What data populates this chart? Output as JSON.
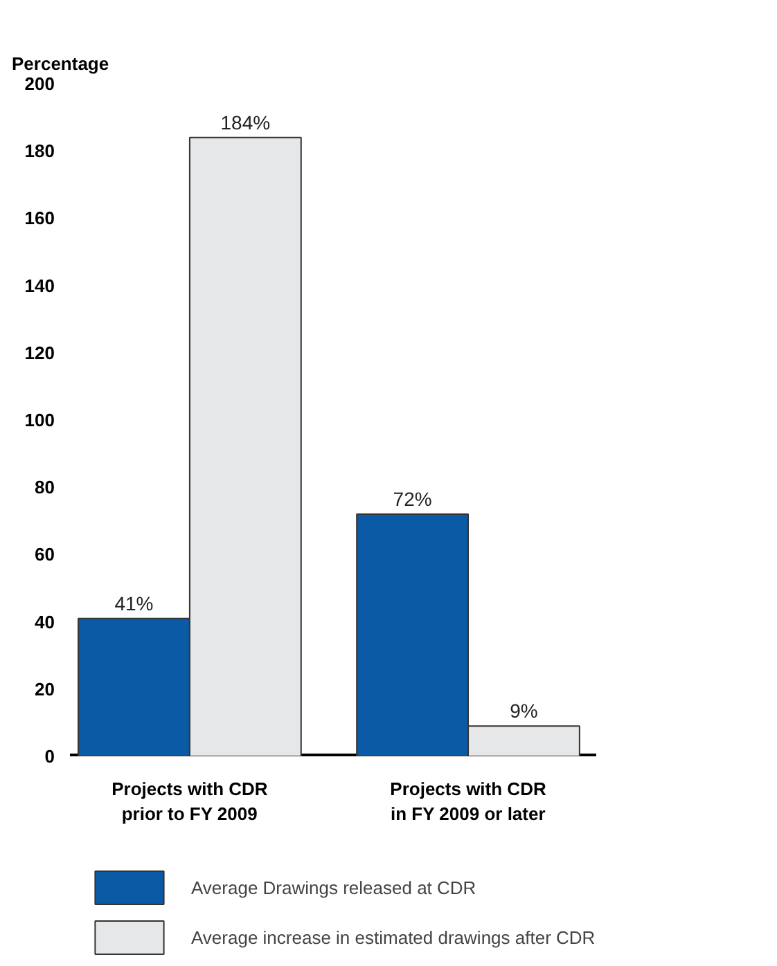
{
  "chart_data": {
    "type": "bar",
    "ylabel": "Percentage",
    "categories": [
      "Projects with CDR\nprior to FY 2009",
      "Projects with CDR\nin FY 2009 or later"
    ],
    "series": [
      {
        "name": "Average Drawings released at CDR",
        "color": "#0b5aa6",
        "values": [
          41,
          72
        ],
        "value_labels": [
          "41%",
          "72%"
        ]
      },
      {
        "name": "Average increase in estimated drawings after CDR",
        "color": "#e6e7e8",
        "values": [
          184,
          9
        ],
        "value_labels": [
          "184%",
          "9%"
        ]
      }
    ],
    "ylim": [
      0,
      200
    ],
    "yticks": [
      0,
      20,
      40,
      60,
      80,
      100,
      120,
      140,
      160,
      180,
      200
    ],
    "grid": false,
    "legend": "bottom"
  }
}
